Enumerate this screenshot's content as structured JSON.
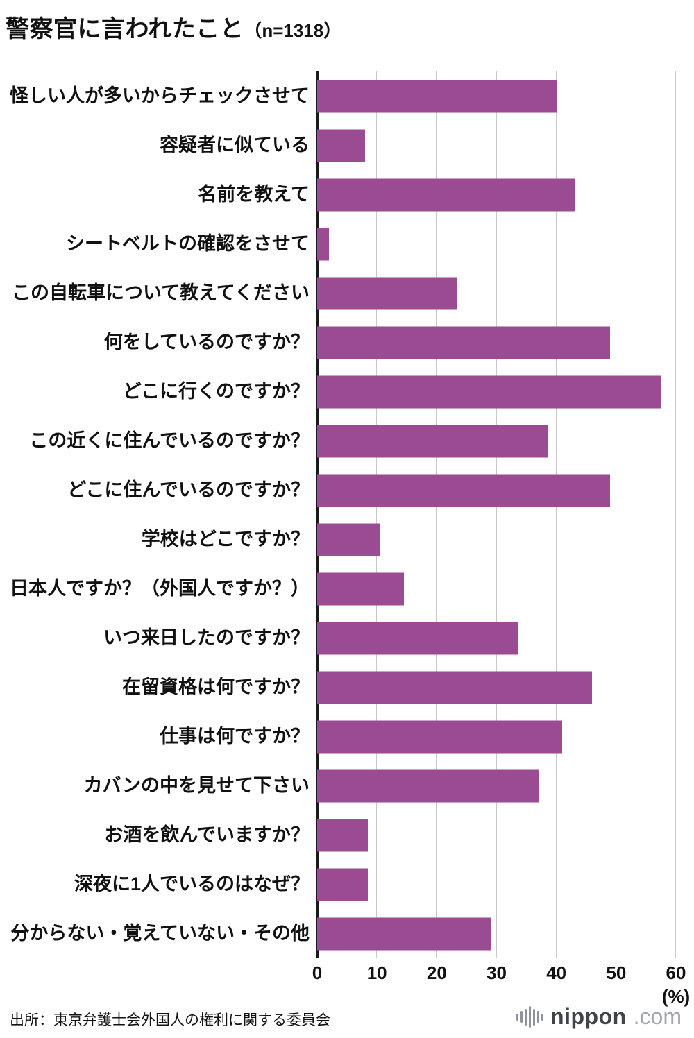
{
  "page": {
    "title_main": "警察官に言われたこと",
    "title_n": "（n=1318）",
    "source": "出所：東京弁護士会外国人の権利に関する委員会",
    "logo": {
      "brand": "nippon",
      "suffix": ".com",
      "icon": "soundwave-icon"
    }
  },
  "chart_data": {
    "type": "bar",
    "orientation": "horizontal",
    "title": "警察官に言われたこと（n=1318）",
    "categories": [
      "怪しい人が多いからチェックさせて",
      "容疑者に似ている",
      "名前を教えて",
      "シートベルトの確認をさせて",
      "この自転車について教えてください",
      "何をしているのですか？",
      "どこに行くのですか？",
      "この近くに住んでいるのですか？",
      "どこに住んでいるのですか？",
      "学校はどこですか？",
      "日本人ですか？（外国人ですか？）",
      "いつ来日したのですか？",
      "在留資格は何ですか？",
      "仕事は何ですか？",
      "カバンの中を見せて下さい",
      "お酒を飲んでいますか？",
      "深夜に1人でいるのはなぜ？",
      "分からない・覚えていない・その他"
    ],
    "values": [
      40,
      8,
      43,
      2,
      23.5,
      49,
      57.5,
      38.5,
      49,
      10.5,
      14.5,
      33.5,
      46,
      41,
      37,
      8.5,
      8.5,
      29
    ],
    "xlim": [
      0,
      60
    ],
    "xticks": [
      0,
      10,
      20,
      30,
      40,
      50,
      60
    ],
    "xlabel": "(%)",
    "bar_color": "#9b4b92",
    "grid": true,
    "legend": false
  }
}
